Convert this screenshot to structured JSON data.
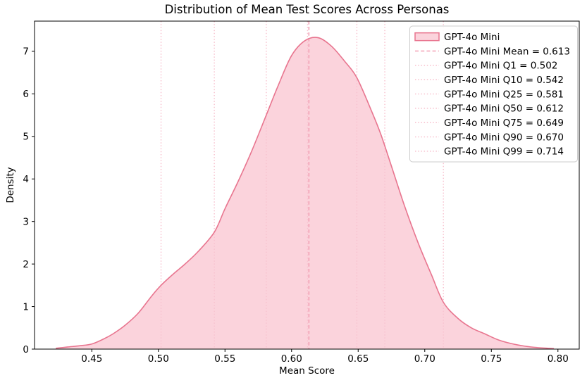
{
  "chart_data": {
    "type": "area",
    "title": "Distribution of Mean Test Scores Across Personas",
    "xlabel": "Mean Score",
    "ylabel": "Density",
    "xlim": [
      0.407,
      0.816
    ],
    "ylim": [
      0,
      7.71
    ],
    "grid": false,
    "legend_position": "upper right",
    "x_ticks": {
      "values": [
        0.45,
        0.5,
        0.55,
        0.6,
        0.65,
        0.7,
        0.75,
        0.8
      ],
      "labels": [
        "0.45",
        "0.50",
        "0.55",
        "0.60",
        "0.65",
        "0.70",
        "0.75",
        "0.80"
      ]
    },
    "y_ticks": {
      "values": [
        0,
        1,
        2,
        3,
        4,
        5,
        6,
        7
      ],
      "labels": [
        "0",
        "1",
        "2",
        "3",
        "4",
        "5",
        "6",
        "7"
      ]
    },
    "series": [
      {
        "name": "GPT-4o Mini",
        "mean": 0.613,
        "quantiles": [
          {
            "label": "Q1",
            "value": 0.502
          },
          {
            "label": "Q10",
            "value": 0.542
          },
          {
            "label": "Q25",
            "value": 0.581
          },
          {
            "label": "Q50",
            "value": 0.612
          },
          {
            "label": "Q75",
            "value": 0.649
          },
          {
            "label": "Q90",
            "value": 0.67
          },
          {
            "label": "Q99",
            "value": 0.714
          }
        ],
        "kde_curve": {
          "x": [
            0.423,
            0.432,
            0.441,
            0.45,
            0.459,
            0.466,
            0.475,
            0.485,
            0.495,
            0.502,
            0.511,
            0.52,
            0.53,
            0.542,
            0.55,
            0.56,
            0.57,
            0.581,
            0.59,
            0.6,
            0.61,
            0.62,
            0.63,
            0.64,
            0.649,
            0.66,
            0.667,
            0.675,
            0.685,
            0.695,
            0.705,
            0.714,
            0.725,
            0.735,
            0.745,
            0.755,
            0.765,
            0.775,
            0.785,
            0.797
          ],
          "density": [
            0.02,
            0.05,
            0.08,
            0.12,
            0.24,
            0.36,
            0.56,
            0.85,
            1.25,
            1.5,
            1.76,
            2.0,
            2.3,
            2.75,
            3.3,
            3.95,
            4.65,
            5.5,
            6.2,
            6.9,
            7.25,
            7.32,
            7.12,
            6.76,
            6.38,
            5.6,
            5.05,
            4.3,
            3.35,
            2.5,
            1.75,
            1.1,
            0.72,
            0.5,
            0.36,
            0.22,
            0.13,
            0.07,
            0.035,
            0.012
          ]
        },
        "peak": {
          "x": 0.62,
          "density": 7.32
        }
      }
    ],
    "legend_entries": [
      {
        "label": "GPT-4o Mini",
        "marker": "patch"
      },
      {
        "label": "GPT-4o Mini Mean = 0.613",
        "marker": "dashed"
      },
      {
        "label": "GPT-4o Mini Q1 = 0.502",
        "marker": "dotted"
      },
      {
        "label": "GPT-4o Mini Q10 = 0.542",
        "marker": "dotted"
      },
      {
        "label": "GPT-4o Mini Q25 = 0.581",
        "marker": "dotted"
      },
      {
        "label": "GPT-4o Mini Q50 = 0.612",
        "marker": "dotted"
      },
      {
        "label": "GPT-4o Mini Q75 = 0.649",
        "marker": "dotted"
      },
      {
        "label": "GPT-4o Mini Q90 = 0.670",
        "marker": "dotted"
      },
      {
        "label": "GPT-4o Mini Q99 = 0.714",
        "marker": "dotted"
      }
    ],
    "colors": {
      "line": "#e8758f",
      "fill": "#fbd3dc",
      "mean_line": "#f2a0b5",
      "quantile_line": "#f8c3d0",
      "axes": "#000000",
      "text": "#000000",
      "legend_border": "#cccccc",
      "background": "#ffffff"
    }
  }
}
